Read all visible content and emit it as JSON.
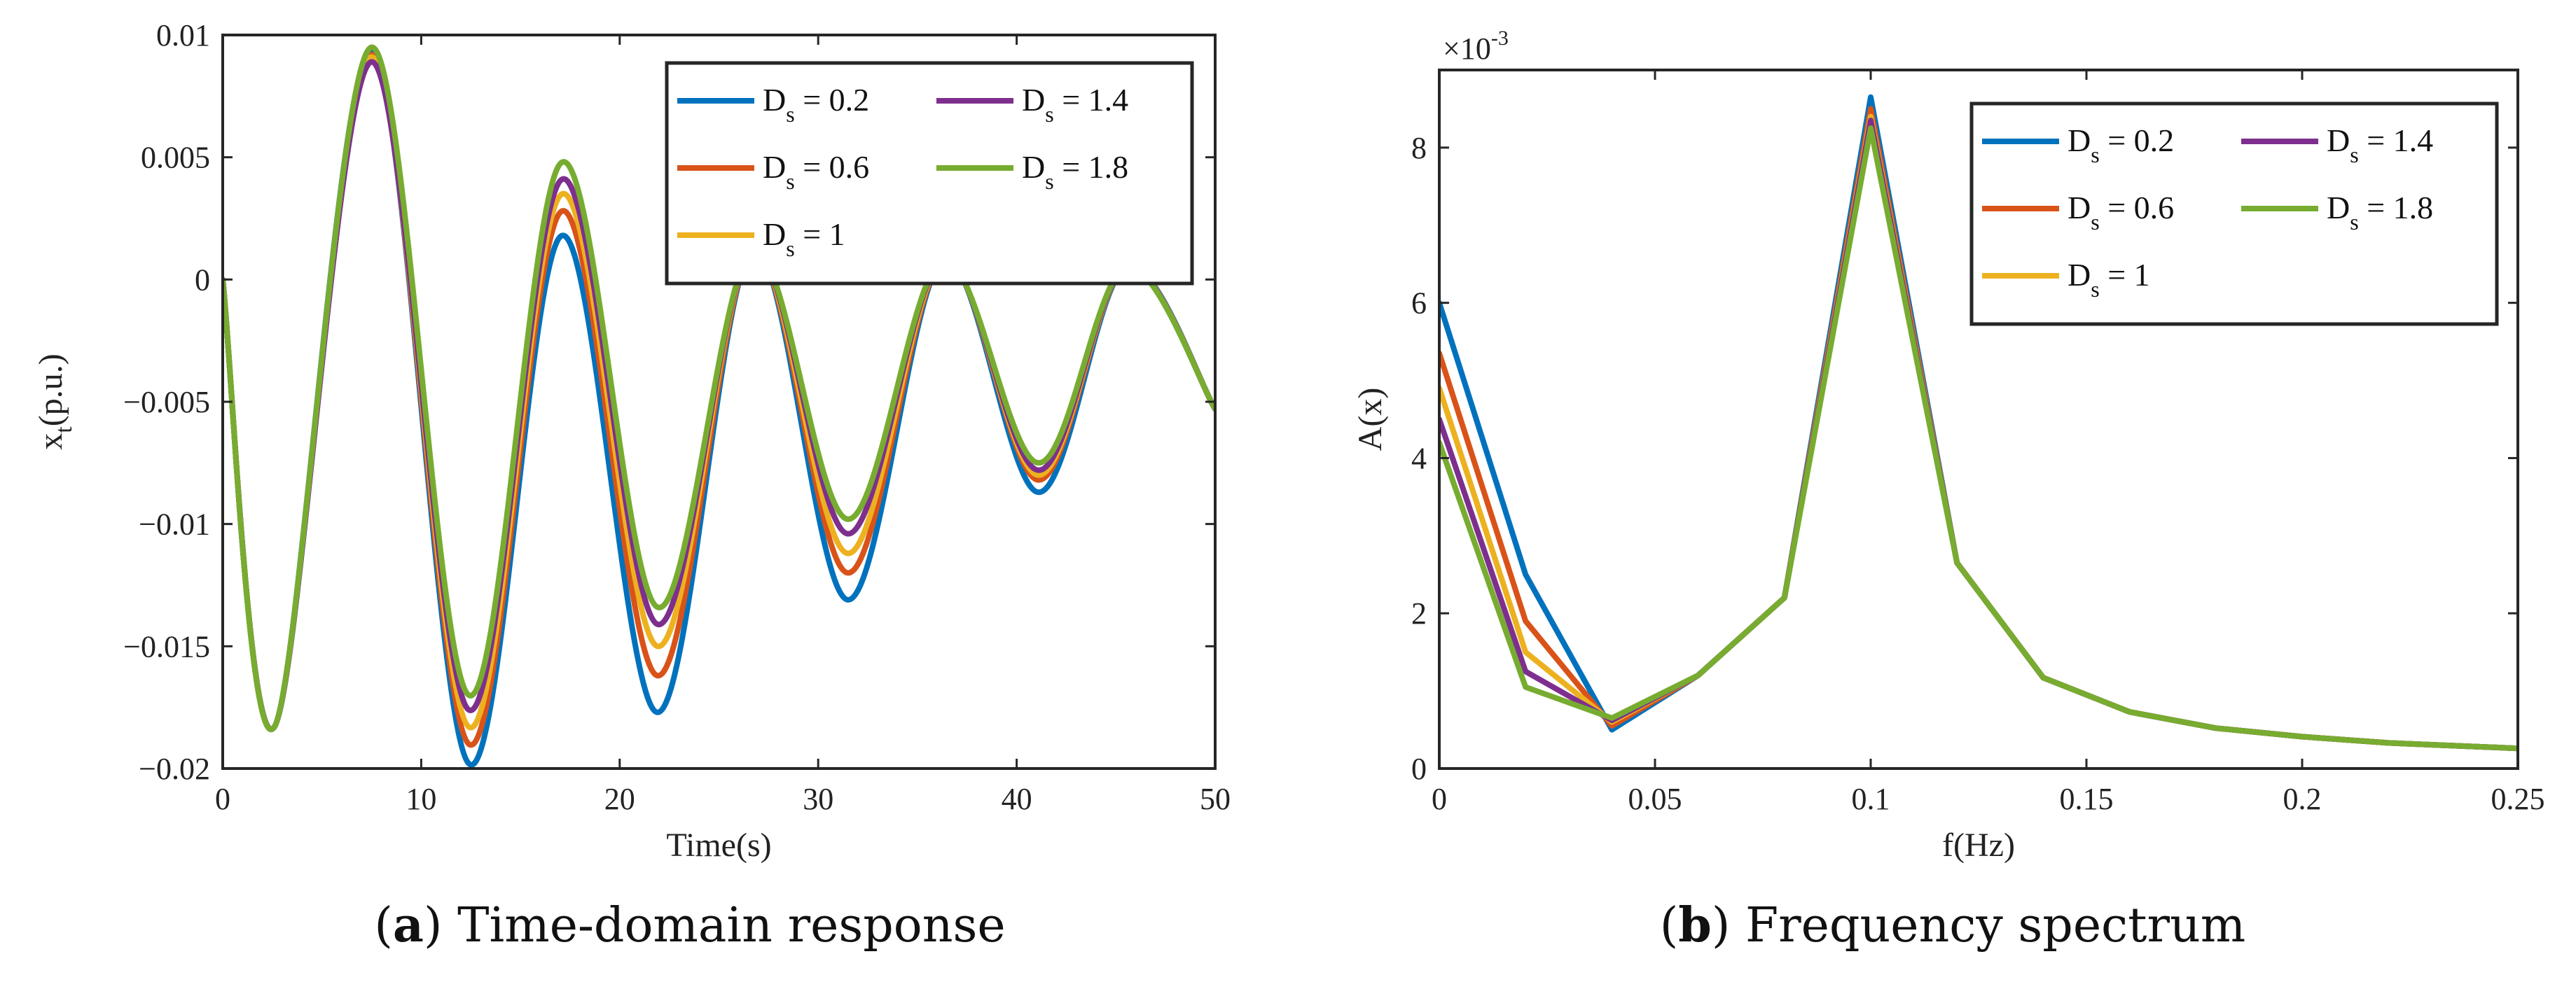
{
  "colors": {
    "series": [
      "#0072BD",
      "#D95319",
      "#EDB120",
      "#7E2F8E",
      "#77AC30"
    ]
  },
  "series_names": [
    "Ds = 0.2",
    "Ds = 0.6",
    "Ds = 1",
    "Ds = 1.4",
    "Ds = 1.8"
  ],
  "chart_data": [
    {
      "type": "line",
      "panel_label": "(a)",
      "caption": "Time-domain response",
      "xlabel": "Time(s)",
      "ylabel": "x_t(p.u.)",
      "xlim": [
        0,
        50
      ],
      "ylim": [
        -0.02,
        0.01
      ],
      "xticks": [
        "0",
        "10",
        "20",
        "30",
        "40",
        "50"
      ],
      "yticks": [
        "−0.02",
        "−0.015",
        "−0.01",
        "−0.005",
        "0",
        "0.005",
        "0.01"
      ],
      "legend": {
        "location": "top-right",
        "entries": [
          {
            "main": "D",
            "sub": "s",
            "value": " = 0.2"
          },
          {
            "main": "D",
            "sub": "s",
            "value": " = 1.4"
          },
          {
            "main": "D",
            "sub": "s",
            "value": " = 0.6"
          },
          {
            "main": "D",
            "sub": "s",
            "value": " = 1.8"
          },
          {
            "main": "D",
            "sub": "s",
            "value": " = 1"
          }
        ]
      },
      "series": [
        {
          "name": "Ds = 0.2",
          "x": [
            0,
            2.6,
            7.5,
            12.4,
            17.1,
            21.9,
            26.7,
            31.5,
            36.3,
            41.1,
            45.5,
            50
          ],
          "y": [
            0,
            -0.0183,
            0.0093,
            -0.0198,
            0.0018,
            -0.0177,
            0.0012,
            -0.0131,
            0.0008,
            -0.0087,
            0.0005,
            -0.0053
          ]
        },
        {
          "name": "Ds = 0.6",
          "x": [
            0,
            2.6,
            7.5,
            12.4,
            17.1,
            21.9,
            26.7,
            31.5,
            36.3,
            41.1,
            45.5,
            50
          ],
          "y": [
            0,
            -0.0183,
            0.0092,
            -0.019,
            0.0028,
            -0.0162,
            0.0012,
            -0.012,
            0.0008,
            -0.0082,
            0.0005,
            -0.0053
          ]
        },
        {
          "name": "Ds = 1",
          "x": [
            0,
            2.6,
            7.5,
            12.4,
            17.1,
            21.9,
            26.7,
            31.5,
            36.3,
            41.1,
            45.5,
            50
          ],
          "y": [
            0,
            -0.0183,
            0.0091,
            -0.0183,
            0.0035,
            -0.015,
            0.0012,
            -0.0112,
            0.0008,
            -0.008,
            0.0005,
            -0.0053
          ]
        },
        {
          "name": "Ds = 1.4",
          "x": [
            0,
            2.6,
            7.5,
            12.4,
            17.1,
            21.9,
            26.7,
            31.5,
            36.3,
            41.1,
            45.5,
            50
          ],
          "y": [
            0,
            -0.0183,
            0.0089,
            -0.0176,
            0.0041,
            -0.0141,
            0.0012,
            -0.0104,
            0.0008,
            -0.0078,
            0.0005,
            -0.0053
          ]
        },
        {
          "name": "Ds = 1.8",
          "x": [
            0,
            2.6,
            7.5,
            12.4,
            17.1,
            21.9,
            26.7,
            31.5,
            36.3,
            41.1,
            45.5,
            50
          ],
          "y": [
            0,
            -0.0183,
            0.0095,
            -0.017,
            0.0048,
            -0.0134,
            0.0012,
            -0.0098,
            0.0008,
            -0.0075,
            0.0005,
            -0.0053
          ]
        }
      ]
    },
    {
      "type": "line",
      "panel_label": "(b)",
      "caption": "Frequency spectrum",
      "xlabel": "f(Hz)",
      "ylabel": "A(x)",
      "y_multiplier_text": "×10",
      "y_multiplier_exponent": "-3",
      "xlim": [
        0,
        0.25
      ],
      "ylim": [
        0,
        9
      ],
      "xticks": [
        "0",
        "0.05",
        "0.1",
        "0.15",
        "0.2",
        "0.25"
      ],
      "yticks": [
        "0",
        "2",
        "4",
        "6",
        "8"
      ],
      "legend": {
        "location": "top-right",
        "entries": [
          {
            "main": "D",
            "sub": "s",
            "value": " = 0.2"
          },
          {
            "main": "D",
            "sub": "s",
            "value": " = 1.4"
          },
          {
            "main": "D",
            "sub": "s",
            "value": " = 0.6"
          },
          {
            "main": "D",
            "sub": "s",
            "value": " = 1.8"
          },
          {
            "main": "D",
            "sub": "s",
            "value": " = 1"
          }
        ]
      },
      "series": [
        {
          "name": "Ds = 0.2",
          "x": [
            0,
            0.02,
            0.04,
            0.06,
            0.08,
            0.1,
            0.12,
            0.14,
            0.16,
            0.18,
            0.2,
            0.22,
            0.25
          ],
          "y": [
            6.0,
            2.5,
            0.5,
            1.2,
            2.2,
            8.65,
            2.65,
            1.17,
            0.73,
            0.52,
            0.41,
            0.33,
            0.26
          ]
        },
        {
          "name": "Ds = 0.6",
          "x": [
            0,
            0.02,
            0.04,
            0.06,
            0.08,
            0.1,
            0.12,
            0.14,
            0.16,
            0.18,
            0.2,
            0.22,
            0.25
          ],
          "y": [
            5.35,
            1.9,
            0.55,
            1.2,
            2.2,
            8.5,
            2.65,
            1.17,
            0.73,
            0.52,
            0.41,
            0.33,
            0.26
          ]
        },
        {
          "name": "Ds = 1",
          "x": [
            0,
            0.02,
            0.04,
            0.06,
            0.08,
            0.1,
            0.12,
            0.14,
            0.16,
            0.18,
            0.2,
            0.22,
            0.25
          ],
          "y": [
            4.9,
            1.5,
            0.6,
            1.2,
            2.2,
            8.4,
            2.65,
            1.17,
            0.73,
            0.52,
            0.41,
            0.33,
            0.26
          ]
        },
        {
          "name": "Ds = 1.4",
          "x": [
            0,
            0.02,
            0.04,
            0.06,
            0.08,
            0.1,
            0.12,
            0.14,
            0.16,
            0.18,
            0.2,
            0.22,
            0.25
          ],
          "y": [
            4.5,
            1.25,
            0.62,
            1.2,
            2.2,
            8.35,
            2.65,
            1.17,
            0.73,
            0.52,
            0.41,
            0.33,
            0.26
          ]
        },
        {
          "name": "Ds = 1.8",
          "x": [
            0,
            0.02,
            0.04,
            0.06,
            0.08,
            0.1,
            0.12,
            0.14,
            0.16,
            0.18,
            0.2,
            0.22,
            0.25
          ],
          "y": [
            4.2,
            1.05,
            0.65,
            1.2,
            2.2,
            8.25,
            2.65,
            1.17,
            0.73,
            0.52,
            0.41,
            0.33,
            0.26
          ]
        }
      ]
    }
  ]
}
